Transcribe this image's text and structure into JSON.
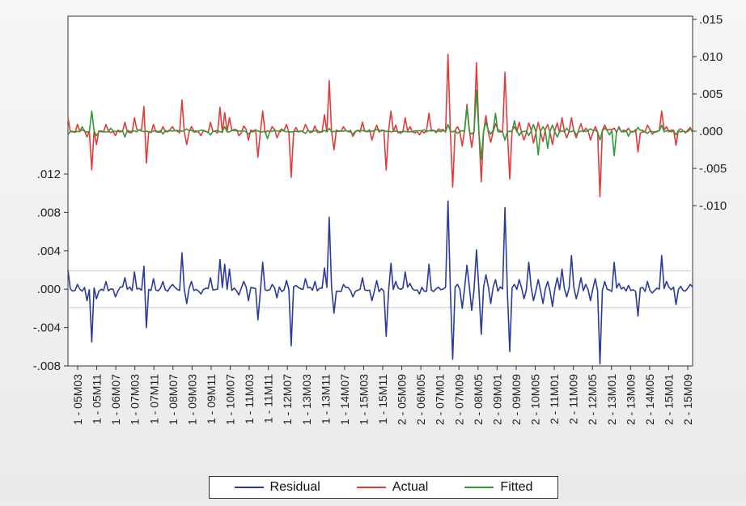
{
  "chart_data": {
    "type": "line",
    "title": "",
    "left_axis": {
      "ylim": [
        -0.008,
        0.012
      ],
      "ticks": [
        ".012",
        ".008",
        ".004",
        ".000",
        "-.004",
        "-.008"
      ],
      "tick_values": [
        0.012,
        0.008,
        0.004,
        0.0,
        -0.004,
        -0.008
      ]
    },
    "right_axis": {
      "ylim": [
        -0.015,
        0.015
      ],
      "ticks": [
        ".015",
        ".010",
        ".005",
        ".000",
        "-.005",
        "-.010"
      ],
      "tick_values": [
        0.015,
        0.01,
        0.005,
        0.0,
        -0.005,
        -0.01
      ]
    },
    "residual_bands": [
      0.0019,
      -0.0019
    ],
    "x_tick_labels": [
      "1 - 05M03",
      "1 - 05M11",
      "1 - 06M07",
      "1 - 07M03",
      "1 - 07M11",
      "1 - 08M07",
      "1 - 09M03",
      "1 - 09M11",
      "1 - 10M07",
      "1 - 11M03",
      "1 - 11M11",
      "1 - 12M07",
      "1 - 13M03",
      "1 - 13M11",
      "1 - 14M07",
      "1 - 15M03",
      "1 - 15M11",
      "2 - 05M09",
      "2 - 06M05",
      "2 - 07M01",
      "2 - 07M09",
      "2 - 08M05",
      "2 - 09M01",
      "2 - 09M09",
      "2 - 10M05",
      "2 - 11M01",
      "2 - 11M09",
      "2 - 12M05",
      "2 - 13M01",
      "2 - 13M09",
      "2 - 14M05",
      "2 - 15M01",
      "2 - 15M09"
    ],
    "n_points": 264,
    "series": [
      {
        "name": "Residual",
        "axis": "left",
        "color": "#2a3a9e",
        "spikes": [
          [
            0,
            0.002
          ],
          [
            4,
            0.0005
          ],
          [
            8,
            -0.0012
          ],
          [
            10,
            -0.0055
          ],
          [
            12,
            -0.001
          ],
          [
            16,
            0.0008
          ],
          [
            20,
            -0.0008
          ],
          [
            24,
            0.0012
          ],
          [
            28,
            0.0018
          ],
          [
            32,
            0.0024
          ],
          [
            33,
            -0.004
          ],
          [
            36,
            0.0011
          ],
          [
            40,
            0.0008
          ],
          [
            44,
            0.0005
          ],
          [
            48,
            0.0038
          ],
          [
            50,
            -0.0015
          ],
          [
            52,
            0.0008
          ],
          [
            56,
            -0.0005
          ],
          [
            60,
            0.0012
          ],
          [
            64,
            0.0031
          ],
          [
            66,
            0.0026
          ],
          [
            68,
            0.0021
          ],
          [
            72,
            -0.0006
          ],
          [
            74,
            0.0008
          ],
          [
            76,
            -0.0012
          ],
          [
            80,
            -0.0032
          ],
          [
            82,
            0.0028
          ],
          [
            86,
            0.0005
          ],
          [
            88,
            -0.0009
          ],
          [
            92,
            0.0009
          ],
          [
            94,
            -0.0059
          ],
          [
            96,
            0.0004
          ],
          [
            100,
            0.0011
          ],
          [
            104,
            0.0008
          ],
          [
            108,
            0.0022
          ],
          [
            110,
            0.0075
          ],
          [
            112,
            -0.0025
          ],
          [
            116,
            0.0005
          ],
          [
            120,
            -0.0008
          ],
          [
            124,
            0.0012
          ],
          [
            128,
            -0.0012
          ],
          [
            130,
            0.0009
          ],
          [
            134,
            -0.0049
          ],
          [
            136,
            0.0027
          ],
          [
            138,
            0.0008
          ],
          [
            142,
            0.0018
          ],
          [
            144,
            0.0006
          ],
          [
            148,
            -0.0005
          ],
          [
            152,
            0.0026
          ],
          [
            156,
            0.0002
          ],
          [
            160,
            0.0092
          ],
          [
            162,
            -0.0073
          ],
          [
            164,
            0.0005
          ],
          [
            166,
            -0.002
          ],
          [
            168,
            0.0025
          ],
          [
            170,
            -0.0022
          ],
          [
            172,
            0.0041
          ],
          [
            174,
            -0.0047
          ],
          [
            176,
            0.0015
          ],
          [
            178,
            -0.0015
          ],
          [
            180,
            0.001
          ],
          [
            184,
            0.0085
          ],
          [
            186,
            -0.0065
          ],
          [
            188,
            0.0005
          ],
          [
            190,
            0.001
          ],
          [
            192,
            -0.001
          ],
          [
            194,
            0.0028
          ],
          [
            196,
            -0.0012
          ],
          [
            198,
            0.001
          ],
          [
            200,
            -0.0015
          ],
          [
            202,
            0.0008
          ],
          [
            204,
            -0.0018
          ],
          [
            206,
            0.0012
          ],
          [
            208,
            0.0021
          ],
          [
            210,
            -0.0008
          ],
          [
            212,
            0.0035
          ],
          [
            214,
            -0.001
          ],
          [
            216,
            0.0012
          ],
          [
            218,
            0.0005
          ],
          [
            220,
            -0.0012
          ],
          [
            222,
            0.0011
          ],
          [
            224,
            -0.0078
          ],
          [
            226,
            0.0008
          ],
          [
            230,
            0.0028
          ],
          [
            232,
            0.0006
          ],
          [
            236,
            0.0004
          ],
          [
            240,
            -0.0028
          ],
          [
            244,
            0.0008
          ],
          [
            246,
            -0.0004
          ],
          [
            250,
            0.0035
          ],
          [
            252,
            0.0008
          ],
          [
            256,
            -0.0016
          ],
          [
            258,
            0.0003
          ],
          [
            262,
            0.0005
          ],
          [
            268,
            -0.0035
          ],
          [
            272,
            0.0005
          ],
          [
            276,
            0.0013
          ],
          [
            278,
            -0.0019
          ],
          [
            280,
            0.0012
          ],
          [
            284,
            0.0009
          ],
          [
            288,
            0.0003
          ]
        ]
      },
      {
        "name": "Actual",
        "axis": "right",
        "color": "#e33a3a",
        "spikes": [
          [
            0,
            0.0018
          ],
          [
            4,
            0.0009
          ],
          [
            8,
            -0.0008
          ],
          [
            10,
            -0.0052
          ],
          [
            12,
            -0.0018
          ],
          [
            16,
            0.0009
          ],
          [
            20,
            -0.0006
          ],
          [
            24,
            0.0012
          ],
          [
            28,
            0.0018
          ],
          [
            32,
            0.0033
          ],
          [
            33,
            -0.0043
          ],
          [
            36,
            0.0009
          ],
          [
            40,
            0.0006
          ],
          [
            44,
            0.0006
          ],
          [
            48,
            0.0042
          ],
          [
            50,
            -0.0018
          ],
          [
            52,
            0.0006
          ],
          [
            56,
            -0.0006
          ],
          [
            60,
            0.0012
          ],
          [
            64,
            0.0032
          ],
          [
            66,
            0.0025
          ],
          [
            68,
            0.0018
          ],
          [
            72,
            -0.0006
          ],
          [
            74,
            0.0007
          ],
          [
            76,
            -0.0012
          ],
          [
            80,
            -0.0035
          ],
          [
            82,
            0.0027
          ],
          [
            86,
            0.0006
          ],
          [
            88,
            -0.0009
          ],
          [
            92,
            0.0009
          ],
          [
            94,
            -0.0062
          ],
          [
            96,
            0.0005
          ],
          [
            100,
            0.0009
          ],
          [
            104,
            0.0007
          ],
          [
            108,
            0.0022
          ],
          [
            110,
            0.0068
          ],
          [
            112,
            -0.0025
          ],
          [
            116,
            0.0006
          ],
          [
            120,
            -0.0007
          ],
          [
            124,
            0.0012
          ],
          [
            128,
            -0.0012
          ],
          [
            130,
            0.0008
          ],
          [
            134,
            -0.0052
          ],
          [
            136,
            0.0027
          ],
          [
            138,
            0.0008
          ],
          [
            142,
            0.0018
          ],
          [
            144,
            0.0006
          ],
          [
            148,
            -0.0005
          ],
          [
            152,
            0.0024
          ],
          [
            156,
            0.0003
          ],
          [
            160,
            0.0103
          ],
          [
            162,
            -0.0075
          ],
          [
            164,
            0.0006
          ],
          [
            166,
            -0.002
          ],
          [
            168,
            0.0036
          ],
          [
            170,
            -0.0022
          ],
          [
            172,
            0.0092
          ],
          [
            174,
            -0.0068
          ],
          [
            176,
            0.0021
          ],
          [
            178,
            -0.0015
          ],
          [
            180,
            0.001
          ],
          [
            184,
            0.0079
          ],
          [
            186,
            -0.0064
          ],
          [
            188,
            0.0006
          ],
          [
            190,
            0.0012
          ],
          [
            192,
            -0.0012
          ],
          [
            194,
            0.0011
          ],
          [
            196,
            -0.0016
          ],
          [
            198,
            0.0012
          ],
          [
            200,
            -0.0014
          ],
          [
            202,
            0.0009
          ],
          [
            204,
            -0.0018
          ],
          [
            206,
            0.0011
          ],
          [
            208,
            0.0018
          ],
          [
            210,
            -0.0009
          ],
          [
            212,
            0.0018
          ],
          [
            214,
            -0.0009
          ],
          [
            216,
            0.001
          ],
          [
            218,
            0.0004
          ],
          [
            220,
            -0.0012
          ],
          [
            222,
            0.0006
          ],
          [
            224,
            -0.0088
          ],
          [
            226,
            0.0008
          ],
          [
            230,
            0.0004
          ],
          [
            232,
            0.0006
          ],
          [
            236,
            0.0004
          ],
          [
            240,
            -0.0028
          ],
          [
            244,
            0.0008
          ],
          [
            246,
            -0.0004
          ],
          [
            250,
            0.0027
          ],
          [
            252,
            0.0006
          ],
          [
            256,
            -0.0019
          ],
          [
            258,
            0.0003
          ],
          [
            262,
            0.0005
          ],
          [
            268,
            -0.0032
          ],
          [
            272,
            0.0005
          ],
          [
            276,
            0.0009
          ],
          [
            278,
            -0.0019
          ],
          [
            280,
            0.001
          ],
          [
            284,
            0.0004
          ],
          [
            288,
            0.0002
          ]
        ]
      },
      {
        "name": "Fitted",
        "axis": "right",
        "color": "#2e9a3a",
        "spikes": [
          [
            0,
            -0.0005
          ],
          [
            6,
            0.0006
          ],
          [
            10,
            0.0027
          ],
          [
            12,
            -0.0006
          ],
          [
            18,
            0.0004
          ],
          [
            24,
            -0.0008
          ],
          [
            30,
            0.0002
          ],
          [
            40,
            -0.0004
          ],
          [
            50,
            0.0003
          ],
          [
            60,
            -0.0005
          ],
          [
            66,
            0.0006
          ],
          [
            76,
            -0.0004
          ],
          [
            84,
            -0.001
          ],
          [
            90,
            0.0003
          ],
          [
            100,
            -0.0003
          ],
          [
            110,
            0.0004
          ],
          [
            120,
            -0.0004
          ],
          [
            130,
            0.0002
          ],
          [
            140,
            -0.0003
          ],
          [
            150,
            0.0002
          ],
          [
            160,
            0.0009
          ],
          [
            164,
            -0.0003
          ],
          [
            168,
            0.0032
          ],
          [
            170,
            -0.0004
          ],
          [
            172,
            0.0055
          ],
          [
            174,
            -0.0038
          ],
          [
            176,
            0.0012
          ],
          [
            178,
            -0.0004
          ],
          [
            180,
            0.0024
          ],
          [
            184,
            -0.0012
          ],
          [
            188,
            0.0014
          ],
          [
            190,
            -0.0006
          ],
          [
            194,
            -0.0006
          ],
          [
            196,
            0.0009
          ],
          [
            198,
            -0.0032
          ],
          [
            200,
            0.0006
          ],
          [
            202,
            -0.0023
          ],
          [
            204,
            0.0008
          ],
          [
            206,
            -0.0008
          ],
          [
            210,
            0.0004
          ],
          [
            214,
            -0.0005
          ],
          [
            220,
            0.0003
          ],
          [
            224,
            -0.0012
          ],
          [
            226,
            0.0004
          ],
          [
            228,
            -0.0005
          ],
          [
            230,
            -0.0033
          ],
          [
            232,
            0.0004
          ],
          [
            236,
            -0.0007
          ],
          [
            240,
            0.0005
          ],
          [
            244,
            -0.0003
          ],
          [
            250,
            0.0008
          ],
          [
            256,
            -0.0005
          ],
          [
            262,
            0.0003
          ],
          [
            270,
            -0.0006
          ],
          [
            276,
            0.0002
          ],
          [
            280,
            -0.0009
          ],
          [
            284,
            -0.0004
          ],
          [
            288,
            -0.0002
          ]
        ]
      }
    ],
    "legend": [
      "Residual",
      "Actual",
      "Fitted"
    ],
    "legend_position": "bottom"
  }
}
